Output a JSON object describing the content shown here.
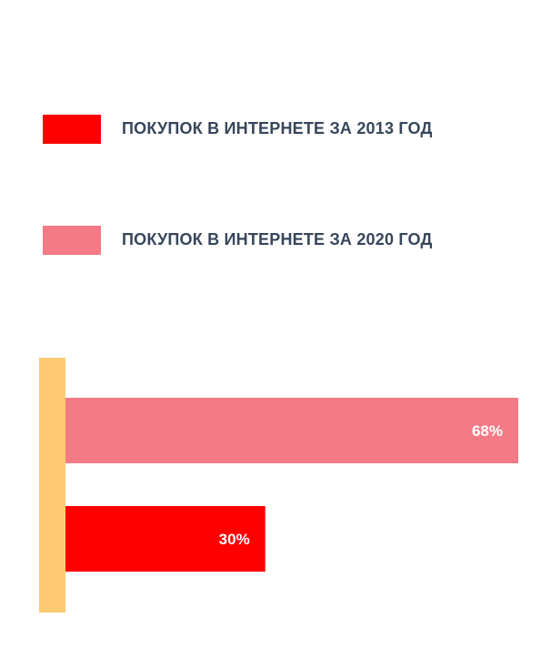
{
  "colors": {
    "series_2013": "#ff0000",
    "series_2020": "#f47a86",
    "axis": "#fdca71",
    "legend_text": "#37465b",
    "bar_label": "#ffffff"
  },
  "legend": {
    "items": [
      {
        "label": "ПОКУПОК В ИНТЕРНЕТЕ ЗА 2013 ГОД",
        "color": "#ff0000"
      },
      {
        "label": "ПОКУПОК В ИНТЕРНЕТЕ ЗА 2020 ГОД",
        "color": "#f47a86"
      }
    ]
  },
  "chart_data": {
    "type": "bar",
    "orientation": "horizontal",
    "title": "",
    "xlabel": "",
    "ylabel": "",
    "xlim": [
      0,
      68
    ],
    "grid": false,
    "legend_placement": "top",
    "series": [
      {
        "name": "ПОКУПОК В ИНТЕРНЕТЕ ЗА 2020 ГОД",
        "value": 68,
        "label": "68%",
        "color": "#f47a86"
      },
      {
        "name": "ПОКУПОК В ИНТЕРНЕТЕ ЗА 2013 ГОД",
        "value": 30,
        "label": "30%",
        "color": "#ff0000"
      }
    ]
  }
}
